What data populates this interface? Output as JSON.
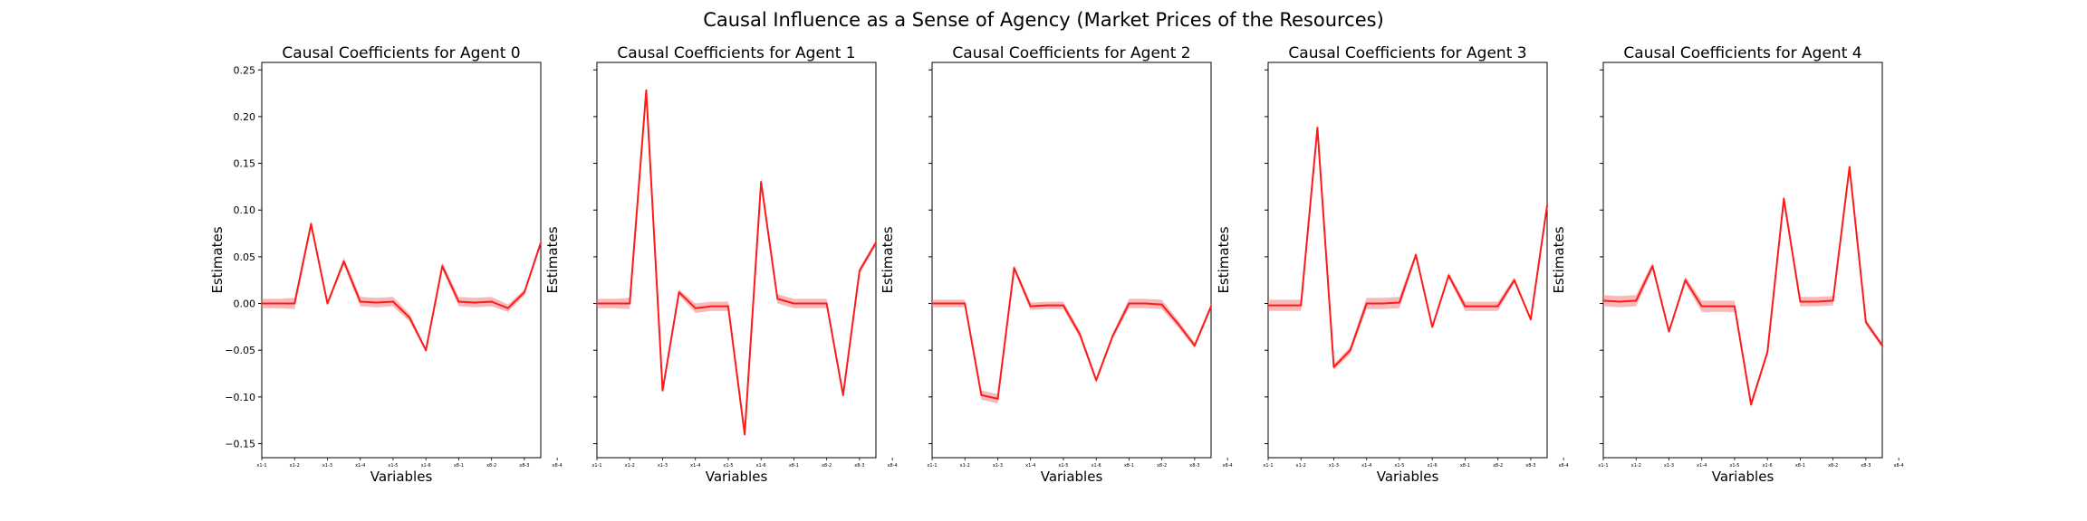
{
  "figure_title": "Causal Influence as a Sense of Agency (Market Prices of the Resources)",
  "colors": {
    "line": "#ff1a1a",
    "band": "#f08080",
    "axis": "#000000"
  },
  "chart_data": [
    {
      "type": "line",
      "title": "Causal Coefficients for Agent 0",
      "xlabel": "Variables",
      "ylabel": "Estimates",
      "ylim": [
        -0.165,
        0.258
      ],
      "yticks": [
        "0.25",
        "0.20",
        "0.15",
        "0.10",
        "0.05",
        "0.00",
        "−0.05",
        "−0.10",
        "−0.15"
      ],
      "xticks": [
        "x1-1",
        "x1-2",
        "x1-3",
        "x1-4",
        "x1-5",
        "x1-6",
        "x8-1",
        "x8-2",
        "x8-3",
        "x8-4"
      ],
      "values": [
        0.0,
        0.0,
        0.0,
        0.085,
        0.0,
        0.045,
        0.002,
        0.001,
        0.002,
        -0.015,
        -0.05,
        0.04,
        0.002,
        0.001,
        0.002,
        -0.005,
        0.012,
        0.065
      ],
      "band": [
        0.005,
        0.005,
        0.006,
        0.004,
        0.002,
        0.004,
        0.005,
        0.005,
        0.005,
        0.004,
        0.002,
        0.004,
        0.005,
        0.005,
        0.005,
        0.004,
        0.003,
        0.003
      ]
    },
    {
      "type": "line",
      "title": "Causal Coefficients for Agent 1",
      "xlabel": "Variables",
      "ylabel": "Estimates",
      "ylim": [
        -0.165,
        0.258
      ],
      "yticks": [],
      "xticks": [
        "x1-1",
        "x1-2",
        "x1-3",
        "x1-4",
        "x1-5",
        "x1-6",
        "x8-1",
        "x8-2",
        "x8-3",
        "x8-4"
      ],
      "values": [
        0.0,
        0.0,
        0.0,
        0.228,
        -0.093,
        0.012,
        -0.005,
        -0.003,
        -0.003,
        -0.14,
        0.13,
        0.005,
        0.0,
        0.0,
        0.0,
        -0.098,
        0.035,
        0.065
      ],
      "band": [
        0.005,
        0.005,
        0.006,
        0.005,
        0.003,
        0.003,
        0.005,
        0.005,
        0.005,
        0.003,
        0.004,
        0.005,
        0.005,
        0.005,
        0.005,
        0.003,
        0.003,
        0.003
      ]
    },
    {
      "type": "line",
      "title": "Causal Coefficients for Agent 2",
      "xlabel": "Variables",
      "ylabel": "Estimates",
      "ylim": [
        -0.165,
        0.258
      ],
      "yticks": [],
      "xticks": [
        "x1-1",
        "x1-2",
        "x1-3",
        "x1-4",
        "x1-5",
        "x1-6",
        "x8-1",
        "x8-2",
        "x8-3",
        "x8-4"
      ],
      "values": [
        0.0,
        0.0,
        0.0,
        -0.098,
        -0.102,
        0.038,
        -0.003,
        -0.002,
        -0.002,
        -0.033,
        -0.082,
        -0.035,
        0.0,
        0.0,
        -0.001,
        -0.022,
        -0.045,
        -0.003
      ],
      "band": [
        0.004,
        0.004,
        0.004,
        0.005,
        0.005,
        0.003,
        0.004,
        0.004,
        0.004,
        0.004,
        0.003,
        0.003,
        0.005,
        0.005,
        0.005,
        0.004,
        0.003,
        0.003
      ]
    },
    {
      "type": "line",
      "title": "Causal Coefficients for Agent 3",
      "xlabel": "Variables",
      "ylabel": "Estimates",
      "ylim": [
        -0.165,
        0.258
      ],
      "yticks": [],
      "xticks": [
        "x1-1",
        "x1-2",
        "x1-3",
        "x1-4",
        "x1-5",
        "x1-6",
        "x8-1",
        "x8-2",
        "x8-3",
        "x8-4"
      ],
      "values": [
        -0.002,
        -0.002,
        -0.002,
        0.188,
        -0.068,
        -0.05,
        0.0,
        0.0,
        0.001,
        0.052,
        -0.025,
        0.03,
        -0.003,
        -0.003,
        -0.003,
        0.025,
        -0.017,
        0.105
      ],
      "band": [
        0.006,
        0.006,
        0.006,
        0.004,
        0.003,
        0.004,
        0.006,
        0.006,
        0.006,
        0.003,
        0.002,
        0.003,
        0.005,
        0.005,
        0.005,
        0.003,
        0.002,
        0.002
      ]
    },
    {
      "type": "line",
      "title": "Causal Coefficients for Agent 4",
      "xlabel": "Variables",
      "ylabel": "Estimates",
      "ylim": [
        -0.165,
        0.258
      ],
      "yticks": [],
      "xticks": [
        "x1-1",
        "x1-2",
        "x1-3",
        "x1-4",
        "x1-5",
        "x1-6",
        "x8-1",
        "x8-2",
        "x8-3",
        "x8-4"
      ],
      "values": [
        0.003,
        0.002,
        0.003,
        0.04,
        -0.03,
        0.025,
        -0.003,
        -0.003,
        -0.003,
        -0.108,
        -0.052,
        0.112,
        0.002,
        0.002,
        0.003,
        0.146,
        -0.02,
        -0.045
      ],
      "band": [
        0.006,
        0.006,
        0.006,
        0.004,
        0.002,
        0.004,
        0.006,
        0.006,
        0.006,
        0.004,
        0.003,
        0.004,
        0.005,
        0.005,
        0.005,
        0.003,
        0.003,
        0.003
      ]
    }
  ]
}
